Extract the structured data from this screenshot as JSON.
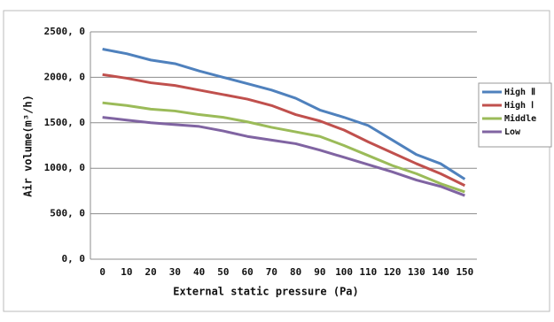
{
  "chart_data": {
    "type": "line",
    "x_label": "External static pressure (Pa)",
    "y_label": "Air  volume(m³/h)",
    "categories": [
      0,
      10,
      20,
      30,
      40,
      50,
      60,
      70,
      80,
      90,
      100,
      110,
      120,
      130,
      140,
      150
    ],
    "series": [
      {
        "name": "High Ⅱ",
        "color": "#4f81bd",
        "values": [
          2310,
          2260,
          2190,
          2150,
          2070,
          2000,
          1930,
          1860,
          1770,
          1640,
          1560,
          1470,
          1310,
          1150,
          1050,
          880
        ]
      },
      {
        "name": "High Ⅰ",
        "color": "#c0504d",
        "values": [
          2030,
          1990,
          1940,
          1910,
          1860,
          1810,
          1760,
          1690,
          1590,
          1520,
          1420,
          1290,
          1170,
          1050,
          940,
          810
        ]
      },
      {
        "name": "Middle",
        "color": "#9bbb59",
        "values": [
          1720,
          1690,
          1650,
          1630,
          1590,
          1560,
          1510,
          1450,
          1400,
          1350,
          1250,
          1140,
          1030,
          940,
          830,
          740
        ]
      },
      {
        "name": "Low",
        "color": "#8064a2",
        "values": [
          1560,
          1530,
          1500,
          1480,
          1460,
          1410,
          1350,
          1310,
          1270,
          1200,
          1120,
          1040,
          960,
          870,
          800,
          700
        ]
      }
    ],
    "ylim": [
      0,
      2500
    ],
    "yticks": [
      {
        "value": 0,
        "label": "0, 0"
      },
      {
        "value": 500,
        "label": "500, 0"
      },
      {
        "value": 1000,
        "label": "1000, 0"
      },
      {
        "value": 1500,
        "label": "1500, 0"
      },
      {
        "value": 2000,
        "label": "2000, 0"
      },
      {
        "value": 2500,
        "label": "2500, 0"
      }
    ],
    "grid": true,
    "legend": "right"
  }
}
